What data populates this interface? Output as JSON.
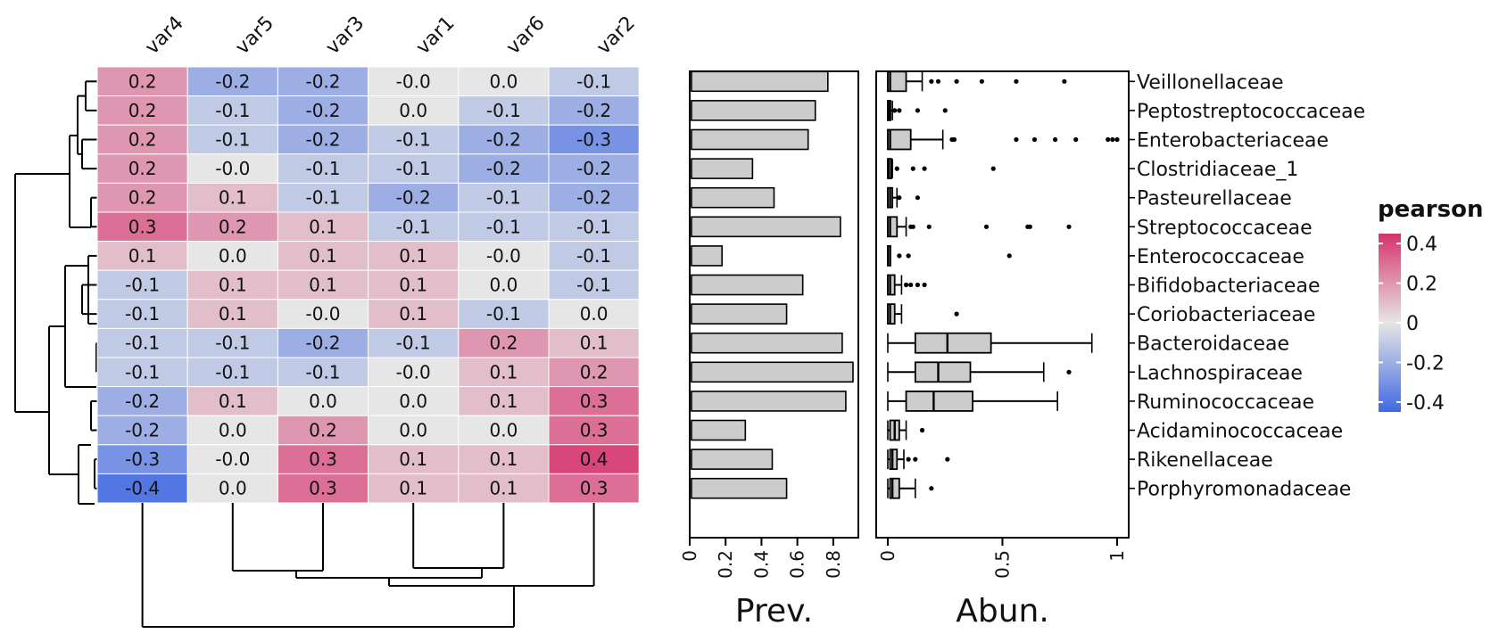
{
  "chart_data": [
    {
      "type": "heatmap",
      "columns": [
        "var4",
        "var5",
        "var3",
        "var1",
        "var6",
        "var2"
      ],
      "rows": [
        "Veillonellaceae",
        "Peptostreptococcaceae",
        "Enterobacteriaceae",
        "Clostridiaceae_1",
        "Pasteurellaceae",
        "Streptococcaceae",
        "Enterococcaceae",
        "Bifidobacteriaceae",
        "Coriobacteriaceae",
        "Bacteroidaceae",
        "Lachnospiraceae",
        "Ruminococcaceae",
        "Acidaminococcaceae",
        "Rikenellaceae",
        "Porphyromonadaceae"
      ],
      "values": [
        [
          0.2,
          -0.2,
          -0.2,
          -0.0,
          0.0,
          -0.1
        ],
        [
          0.2,
          -0.1,
          -0.2,
          0.0,
          -0.1,
          -0.2
        ],
        [
          0.2,
          -0.1,
          -0.2,
          -0.1,
          -0.2,
          -0.3
        ],
        [
          0.2,
          -0.0,
          -0.1,
          -0.1,
          -0.2,
          -0.2
        ],
        [
          0.2,
          0.1,
          -0.1,
          -0.2,
          -0.1,
          -0.2
        ],
        [
          0.3,
          0.2,
          0.1,
          -0.1,
          -0.1,
          -0.1
        ],
        [
          0.1,
          0.0,
          0.1,
          0.1,
          -0.0,
          -0.1
        ],
        [
          -0.1,
          0.1,
          0.1,
          0.1,
          0.0,
          -0.1
        ],
        [
          -0.1,
          0.1,
          -0.0,
          0.1,
          -0.1,
          0.0
        ],
        [
          -0.1,
          -0.1,
          -0.2,
          -0.1,
          0.2,
          0.1
        ],
        [
          -0.1,
          -0.1,
          -0.1,
          -0.0,
          0.1,
          0.2
        ],
        [
          -0.2,
          0.1,
          0.0,
          0.0,
          0.1,
          0.3
        ],
        [
          -0.2,
          0.0,
          0.2,
          0.0,
          0.0,
          0.3
        ],
        [
          -0.3,
          -0.0,
          0.3,
          0.1,
          0.1,
          0.4
        ],
        [
          -0.4,
          0.0,
          0.3,
          0.1,
          0.1,
          0.3
        ]
      ],
      "cell_labels": [
        [
          "0.2",
          "-0.2",
          "-0.2",
          "-0.0",
          "0.0",
          "-0.1"
        ],
        [
          "0.2",
          "-0.1",
          "-0.2",
          "0.0",
          "-0.1",
          "-0.2"
        ],
        [
          "0.2",
          "-0.1",
          "-0.2",
          "-0.1",
          "-0.2",
          "-0.3"
        ],
        [
          "0.2",
          "-0.0",
          "-0.1",
          "-0.1",
          "-0.2",
          "-0.2"
        ],
        [
          "0.2",
          "0.1",
          "-0.1",
          "-0.2",
          "-0.1",
          "-0.2"
        ],
        [
          "0.3",
          "0.2",
          "0.1",
          "-0.1",
          "-0.1",
          "-0.1"
        ],
        [
          "0.1",
          "0.0",
          "0.1",
          "0.1",
          "-0.0",
          "-0.1"
        ],
        [
          "-0.1",
          "0.1",
          "0.1",
          "0.1",
          "0.0",
          "-0.1"
        ],
        [
          "-0.1",
          "0.1",
          "-0.0",
          "0.1",
          "-0.1",
          "0.0"
        ],
        [
          "-0.1",
          "-0.1",
          "-0.2",
          "-0.1",
          "0.2",
          "0.1"
        ],
        [
          "-0.1",
          "-0.1",
          "-0.1",
          "-0.0",
          "0.1",
          "0.2"
        ],
        [
          "-0.2",
          "0.1",
          "0.0",
          "0.0",
          "0.1",
          "0.3"
        ],
        [
          "-0.2",
          "0.0",
          "0.2",
          "0.0",
          "0.0",
          "0.3"
        ],
        [
          "-0.3",
          "-0.0",
          "0.3",
          "0.1",
          "0.1",
          "0.4"
        ],
        [
          "-0.4",
          "0.0",
          "0.3",
          "0.1",
          "0.1",
          "0.3"
        ]
      ],
      "color_scale": {
        "low": "#4169e1",
        "mid": "#e6e6e6",
        "high": "#d6336c",
        "range": [
          -0.45,
          0.45
        ]
      },
      "legend": {
        "title": "pearson",
        "placement": "right",
        "ticks": [
          0.4,
          0.2,
          0,
          -0.2,
          -0.4
        ],
        "tick_labels": [
          "0.4",
          "0.2",
          "0",
          "-0.2",
          "-0.4"
        ]
      },
      "dendrograms": [
        "rows-left",
        "columns-bottom"
      ]
    },
    {
      "type": "bar",
      "orientation": "horizontal",
      "categories": [
        "Veillonellaceae",
        "Peptostreptococcaceae",
        "Enterobacteriaceae",
        "Clostridiaceae_1",
        "Pasteurellaceae",
        "Streptococcaceae",
        "Enterococcaceae",
        "Bifidobacteriaceae",
        "Coriobacteriaceae",
        "Bacteroidaceae",
        "Lachnospiraceae",
        "Ruminococcaceae",
        "Acidaminococcaceae",
        "Rikenellaceae",
        "Porphyromonadaceae"
      ],
      "values": [
        0.77,
        0.7,
        0.66,
        0.35,
        0.47,
        0.84,
        0.18,
        0.63,
        0.54,
        0.85,
        0.91,
        0.87,
        0.31,
        0.46,
        0.54
      ],
      "xlabel": "Prev.",
      "xlim": [
        0,
        0.94
      ],
      "xticks": [
        0,
        0.2,
        0.4,
        0.6,
        0.8
      ],
      "xtick_labels": [
        "0",
        "0.2",
        "0.4",
        "0.6",
        "0.8"
      ],
      "bar_color": "#cccccc"
    },
    {
      "type": "boxplot",
      "orientation": "horizontal",
      "categories": [
        "Veillonellaceae",
        "Peptostreptococcaceae",
        "Enterobacteriaceae",
        "Clostridiaceae_1",
        "Pasteurellaceae",
        "Streptococcaceae",
        "Enterococcaceae",
        "Bifidobacteriaceae",
        "Coriobacteriaceae",
        "Bacteroidaceae",
        "Lachnospiraceae",
        "Ruminococcaceae",
        "Acidaminococcaceae",
        "Rikenellaceae",
        "Porphyromonadaceae"
      ],
      "boxes": [
        {
          "whisker_low": 0.0,
          "q1": 0.0,
          "median": 0.01,
          "q3": 0.08,
          "whisker_high": 0.15,
          "outliers": [
            0.19,
            0.22,
            0.3,
            0.41,
            0.56,
            0.77
          ]
        },
        {
          "whisker_low": 0.0,
          "q1": 0.0,
          "median": 0.005,
          "q3": 0.01,
          "whisker_high": 0.02,
          "outliers": [
            0.03,
            0.05,
            0.13,
            0.25
          ]
        },
        {
          "whisker_low": 0.0,
          "q1": 0.0,
          "median": 0.01,
          "q3": 0.1,
          "whisker_high": 0.24,
          "outliers": [
            0.28,
            0.29,
            0.56,
            0.64,
            0.73,
            0.82,
            0.96,
            0.98,
            1.0
          ]
        },
        {
          "whisker_low": 0.0,
          "q1": 0.0,
          "median": 0.005,
          "q3": 0.015,
          "whisker_high": 0.02,
          "outliers": [
            0.04,
            0.11,
            0.16,
            0.46
          ]
        },
        {
          "whisker_low": 0.0,
          "q1": 0.0,
          "median": 0.01,
          "q3": 0.02,
          "whisker_high": 0.04,
          "outliers": [
            0.05,
            0.13
          ]
        },
        {
          "whisker_low": 0.0,
          "q1": 0.0,
          "median": 0.01,
          "q3": 0.04,
          "whisker_high": 0.08,
          "outliers": [
            0.1,
            0.11,
            0.18,
            0.43,
            0.61,
            0.62,
            0.79
          ]
        },
        {
          "whisker_low": 0.0,
          "q1": 0.0,
          "median": 0.002,
          "q3": 0.005,
          "whisker_high": 0.01,
          "outliers": [
            0.05,
            0.09,
            0.53
          ]
        },
        {
          "whisker_low": 0.0,
          "q1": 0.0,
          "median": 0.01,
          "q3": 0.03,
          "whisker_high": 0.06,
          "outliers": [
            0.08,
            0.1,
            0.13,
            0.16
          ]
        },
        {
          "whisker_low": 0.0,
          "q1": 0.0,
          "median": 0.01,
          "q3": 0.03,
          "whisker_high": 0.06,
          "outliers": [
            0.3
          ]
        },
        {
          "whisker_low": 0.0,
          "q1": 0.12,
          "median": 0.26,
          "q3": 0.45,
          "whisker_high": 0.89,
          "outliers": []
        },
        {
          "whisker_low": 0.0,
          "q1": 0.12,
          "median": 0.22,
          "q3": 0.36,
          "whisker_high": 0.68,
          "outliers": [
            0.79
          ]
        },
        {
          "whisker_low": 0.0,
          "q1": 0.08,
          "median": 0.2,
          "q3": 0.37,
          "whisker_high": 0.74,
          "outliers": []
        },
        {
          "whisker_low": 0.0,
          "q1": 0.01,
          "median": 0.03,
          "q3": 0.05,
          "whisker_high": 0.08,
          "outliers": [
            0.15
          ]
        },
        {
          "whisker_low": 0.0,
          "q1": 0.01,
          "median": 0.02,
          "q3": 0.04,
          "whisker_high": 0.07,
          "outliers": [
            0.09,
            0.12,
            0.26
          ]
        },
        {
          "whisker_low": 0.0,
          "q1": 0.01,
          "median": 0.02,
          "q3": 0.05,
          "whisker_high": 0.12,
          "outliers": [
            0.19
          ]
        }
      ],
      "xlabel": "Abun.",
      "xlim": [
        0,
        1.02
      ],
      "xticks": [
        0,
        0.5,
        1
      ],
      "xtick_labels": [
        "0",
        "0.5",
        "1"
      ],
      "box_color": "#cccccc"
    }
  ]
}
